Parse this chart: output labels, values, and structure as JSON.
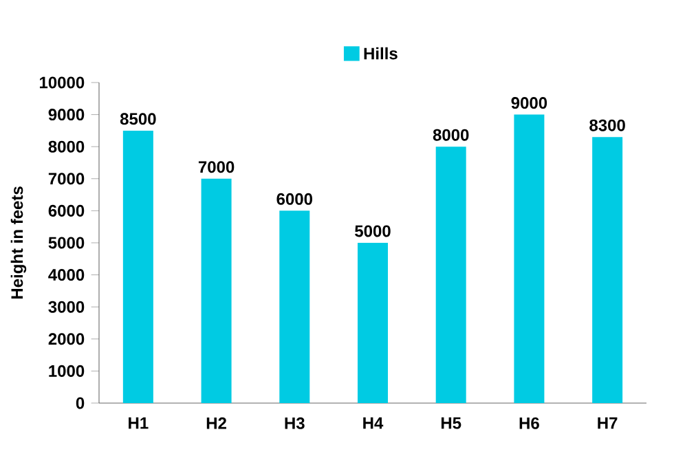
{
  "chart_data": {
    "type": "bar",
    "ylabel": "Height in feets",
    "categories": [
      "H1",
      "H2",
      "H3",
      "H4",
      "H5",
      "H6",
      "H7"
    ],
    "series": [
      {
        "name": "Hills",
        "color": "#00cbe3",
        "values": [
          8500,
          7000,
          6000,
          5000,
          8000,
          9000,
          8300
        ]
      }
    ],
    "ylim": [
      0,
      10000
    ],
    "yticks": [
      0,
      1000,
      2000,
      3000,
      4000,
      5000,
      6000,
      7000,
      8000,
      9000,
      10000
    ],
    "data_labels": true,
    "legend": "top",
    "grid": false
  }
}
